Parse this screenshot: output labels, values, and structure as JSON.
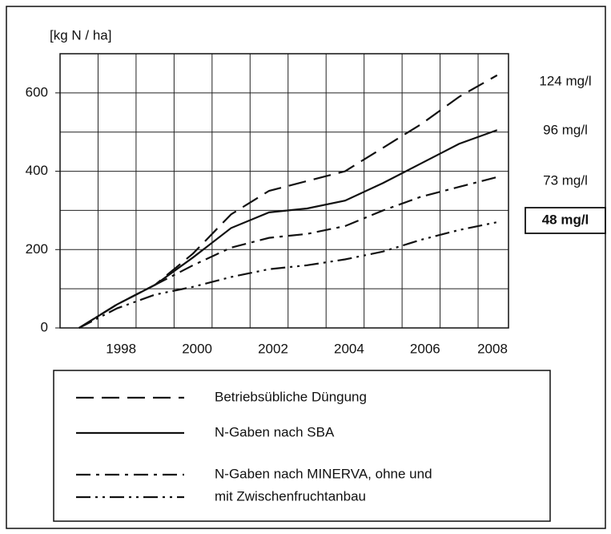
{
  "chart_data": {
    "type": "line",
    "y_label": "[kg N / ha]",
    "x": [
      1997,
      1998,
      1999,
      2000,
      2001,
      2002,
      2003,
      2004,
      2005,
      2006,
      2007,
      2008
    ],
    "xlim": [
      1996.5,
      2008.3
    ],
    "xticks": [
      1998,
      2000,
      2002,
      2004,
      2006,
      2008
    ],
    "ylim": [
      0,
      700
    ],
    "yticks": [
      0,
      200,
      400,
      600
    ],
    "grid": true,
    "series": [
      {
        "name": "Betriebsübliche Düngung",
        "color": "#111111",
        "dash": "long-dash",
        "values": [
          0,
          60,
          110,
          190,
          290,
          350,
          375,
          400,
          460,
          520,
          590,
          645
        ]
      },
      {
        "name": "N-Gaben nach SBA",
        "color": "#111111",
        "dash": "solid",
        "values": [
          0,
          60,
          110,
          180,
          255,
          295,
          305,
          325,
          370,
          420,
          470,
          505
        ]
      },
      {
        "name": "N-Gaben nach MINERVA, ohne und",
        "color": "#111111",
        "dash": "dash-dot",
        "values": [
          0,
          60,
          110,
          160,
          205,
          230,
          240,
          260,
          300,
          335,
          360,
          385
        ]
      },
      {
        "name": "mit Zwischenfruchtanbau",
        "color": "#111111",
        "dash": "dash-dot-dot",
        "values": [
          0,
          50,
          85,
          105,
          130,
          150,
          160,
          175,
          195,
          225,
          250,
          270
        ]
      }
    ],
    "annotations": [
      {
        "text": "124 mg/l",
        "boxed": false
      },
      {
        "text": "96 mg/l",
        "boxed": false
      },
      {
        "text": "73 mg/l",
        "boxed": false
      },
      {
        "text": "48 mg/l",
        "boxed": true
      }
    ]
  }
}
